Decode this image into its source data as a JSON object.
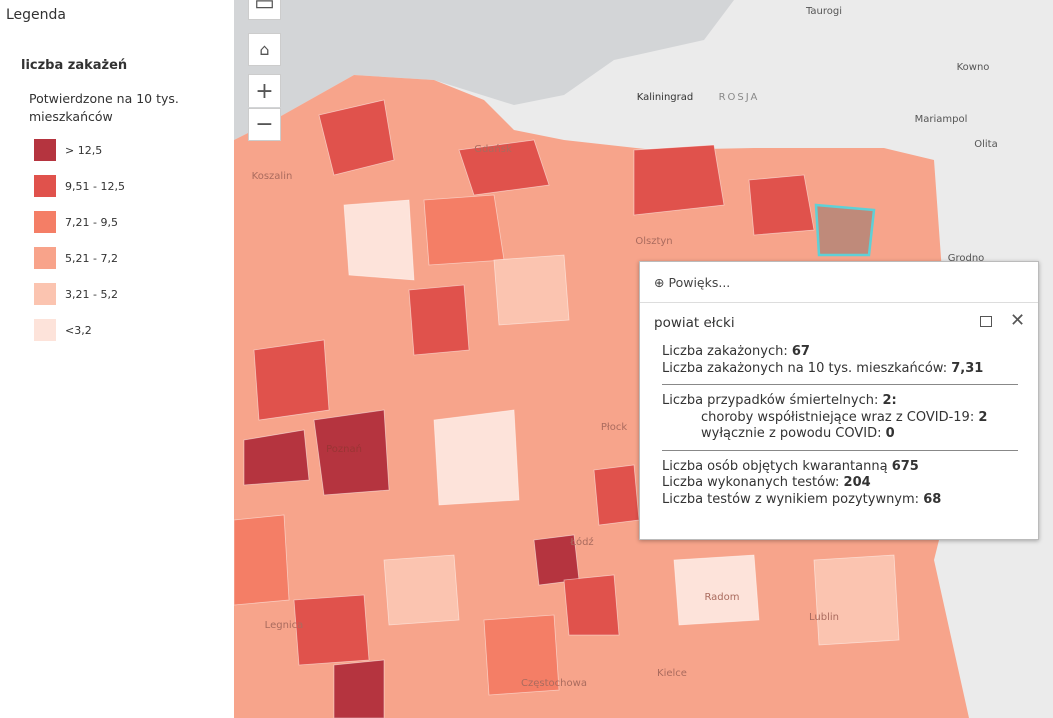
{
  "legend": {
    "title": "Legenda",
    "layer": "liczba zakażeń",
    "field": "Potwierdzone na 10 tys. mieszkańców",
    "items": [
      {
        "label": "> 12,5",
        "color": "#b5343f"
      },
      {
        "label": "9,51 - 12,5",
        "color": "#e0524c"
      },
      {
        "label": "7,21 - 9,5",
        "color": "#f47e66"
      },
      {
        "label": "5,21 - 7,2",
        "color": "#f8a38a"
      },
      {
        "label": "3,21 - 5,2",
        "color": "#fbc4b0"
      },
      {
        "label": "<3,2",
        "color": "#fde3da"
      }
    ]
  },
  "map_labels": [
    "Taurogi",
    "Kowno",
    "Kaliningrad",
    "ROSJA",
    "Mariampol",
    "Olita",
    "Grodno",
    "Koszalin",
    "Gdańsk",
    "Olsztyn",
    "Poznań",
    "Płock",
    "Łódź",
    "Radom",
    "Lublin",
    "Legnica",
    "Kielce",
    "Częstochowa"
  ],
  "popup": {
    "zoom": "Powięks...",
    "title": "powiat ełcki",
    "groups": [
      [
        {
          "label": "Liczba zakażonych: ",
          "value": 67
        },
        {
          "label": "Liczba zakażonych na 10 tys. mieszkańców: ",
          "value": "7,31"
        }
      ],
      [
        {
          "label": "Liczba przypadków śmiertelnych: ",
          "value": "2:"
        },
        {
          "label": "choroby współistniejące wraz z COVID-19: ",
          "value": 2,
          "indent": true
        },
        {
          "label": "wyłącznie z powodu COVID: ",
          "value": 0,
          "indent": true
        }
      ],
      [
        {
          "label": "Liczba osób objętych kwarantanną ",
          "value": 675
        },
        {
          "label": "Liczba wykonanych testów: ",
          "value": 204
        },
        {
          "label": "Liczba testów z wynikiem pozytywnym: ",
          "value": 68
        }
      ]
    ]
  }
}
